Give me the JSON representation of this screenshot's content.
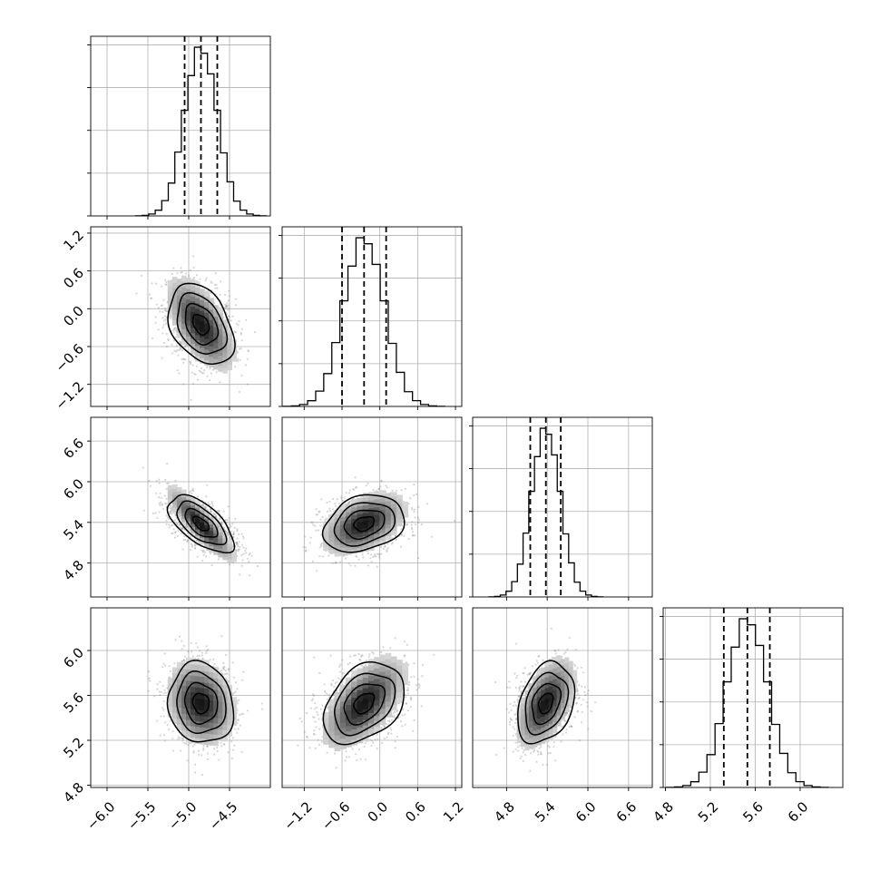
{
  "chart_data": {
    "type": "corner",
    "grid": true,
    "parameters": [
      {
        "mean": -4.85,
        "sd": 0.2,
        "range": [
          -6.2,
          -4.0
        ],
        "ticks": [
          -6.0,
          -5.5,
          -5.0,
          -4.5
        ],
        "tick_labels": [
          "−6.0",
          "−5.5",
          "−5.0",
          "−4.5"
        ],
        "quantiles": [
          -5.05,
          -4.85,
          -4.65
        ]
      },
      {
        "mean": -0.25,
        "sd": 0.32,
        "range": [
          -1.55,
          1.3
        ],
        "ticks": [
          -1.2,
          -0.6,
          0.0,
          0.6,
          1.2
        ],
        "tick_labels": [
          "−1.2",
          "−0.6",
          "0.0",
          "0.6",
          "1.2"
        ],
        "quantiles": [
          -0.6,
          -0.25,
          0.1
        ]
      },
      {
        "mean": 5.38,
        "sd": 0.21,
        "range": [
          4.3,
          6.95
        ],
        "ticks": [
          4.8,
          5.4,
          6.0,
          6.6
        ],
        "tick_labels": [
          "4.8",
          "5.4",
          "6.0",
          "6.6"
        ],
        "quantiles": [
          5.15,
          5.38,
          5.6
        ]
      },
      {
        "mean": 5.53,
        "sd": 0.18,
        "range": [
          4.78,
          6.38
        ],
        "ticks": [
          4.8,
          5.2,
          5.6,
          6.0
        ],
        "tick_labels": [
          "4.8",
          "5.2",
          "5.6",
          "6.0"
        ],
        "quantiles": [
          5.32,
          5.53,
          5.73
        ]
      }
    ],
    "correlations": [
      {
        "pair": [
          0,
          1
        ],
        "r": -0.35
      },
      {
        "pair": [
          0,
          2
        ],
        "r": -0.62
      },
      {
        "pair": [
          0,
          3
        ],
        "r": -0.1
      },
      {
        "pair": [
          1,
          2
        ],
        "r": 0.25
      },
      {
        "pair": [
          1,
          3
        ],
        "r": 0.35
      },
      {
        "pair": [
          2,
          3
        ],
        "r": 0.3
      }
    ],
    "histogram_bins": 20,
    "contour_levels": 4
  }
}
